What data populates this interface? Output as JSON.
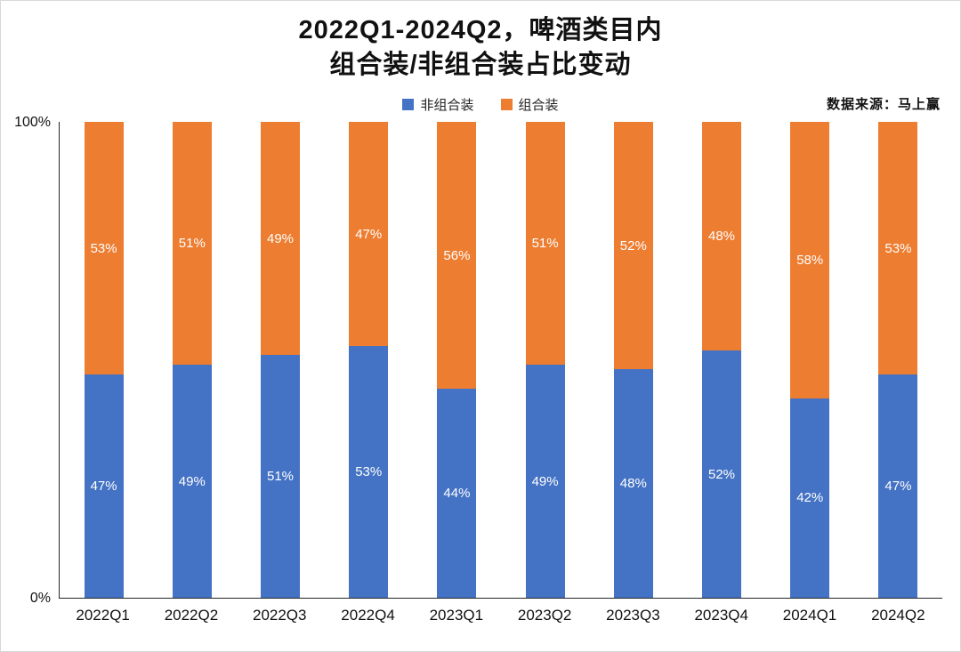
{
  "title": {
    "line1": "2022Q1-2024Q2，啤酒类目内",
    "line2": "组合装/非组合装占比变动"
  },
  "legend": [
    {
      "label": "非组合装",
      "color": "#4472C4"
    },
    {
      "label": "组合装",
      "color": "#ED7D31"
    }
  ],
  "source_note": "数据来源：马上赢",
  "axis": {
    "y_max_label": "100%",
    "y_min_label": "0%"
  },
  "chart_data": {
    "type": "bar",
    "stacked": true,
    "percent_stacked": true,
    "title": "2022Q1-2024Q2，啤酒类目内 组合装/非组合装占比变动",
    "categories": [
      "2022Q1",
      "2022Q2",
      "2022Q3",
      "2022Q4",
      "2023Q1",
      "2023Q2",
      "2023Q3",
      "2023Q4",
      "2024Q1",
      "2024Q2"
    ],
    "series": [
      {
        "name": "非组合装",
        "color": "#4472C4",
        "values": [
          47,
          49,
          51,
          53,
          44,
          49,
          48,
          52,
          42,
          47
        ]
      },
      {
        "name": "组合装",
        "color": "#ED7D31",
        "values": [
          53,
          51,
          49,
          47,
          56,
          51,
          52,
          48,
          58,
          53
        ]
      }
    ],
    "xlabel": "",
    "ylabel": "",
    "ylim": [
      0,
      100
    ],
    "grid": false,
    "legend_position": "top",
    "value_label_format": "{v}%"
  }
}
